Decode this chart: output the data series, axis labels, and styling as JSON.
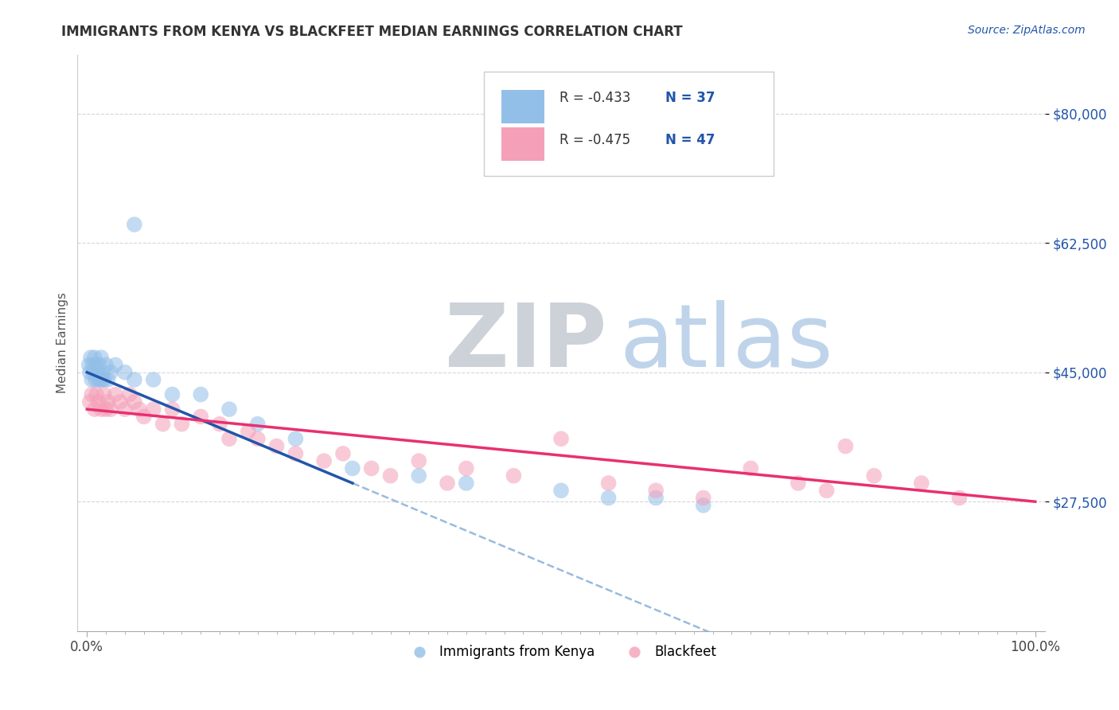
{
  "title": "IMMIGRANTS FROM KENYA VS BLACKFEET MEDIAN EARNINGS CORRELATION CHART",
  "source": "Source: ZipAtlas.com",
  "ylabel": "Median Earnings",
  "xlim": [
    -1,
    101
  ],
  "ylim": [
    10000,
    88000
  ],
  "yticks": [
    27500,
    45000,
    62500,
    80000
  ],
  "ytick_labels": [
    "$27,500",
    "$45,000",
    "$62,500",
    "$80,000"
  ],
  "xticks": [
    0,
    100
  ],
  "xtick_labels": [
    "0.0%",
    "100.0%"
  ],
  "blue_color": "#92bfe8",
  "pink_color": "#f4a0b8",
  "blue_line_color": "#2255aa",
  "pink_line_color": "#e83070",
  "dashed_line_color": "#99bbdd",
  "legend_r1": "R = -0.433",
  "legend_n1": "N = 37",
  "legend_r2": "R = -0.475",
  "legend_n2": "N = 47",
  "legend_label1": "Immigrants from Kenya",
  "legend_label2": "Blackfeet",
  "blue_x": [
    0.2,
    0.3,
    0.4,
    0.5,
    0.6,
    0.7,
    0.8,
    0.9,
    1.0,
    1.1,
    1.2,
    1.3,
    1.4,
    1.5,
    1.6,
    1.7,
    1.8,
    2.0,
    2.2,
    2.5,
    3.0,
    4.0,
    5.0,
    7.0,
    9.0,
    12.0,
    15.0,
    18.0,
    22.0,
    28.0,
    35.0,
    40.0,
    50.0,
    55.0,
    60.0,
    65.0,
    5.0
  ],
  "blue_y": [
    46000,
    45000,
    47000,
    44000,
    46000,
    45000,
    47000,
    44000,
    46000,
    45000,
    44000,
    46000,
    44000,
    47000,
    44000,
    45000,
    44000,
    46000,
    44000,
    45000,
    46000,
    45000,
    44000,
    44000,
    42000,
    42000,
    40000,
    38000,
    36000,
    32000,
    31000,
    30000,
    29000,
    28000,
    28000,
    27000,
    65000
  ],
  "pink_x": [
    0.3,
    0.5,
    0.8,
    1.0,
    1.2,
    1.5,
    1.8,
    2.0,
    2.2,
    2.5,
    3.0,
    3.5,
    4.0,
    4.5,
    5.0,
    5.5,
    6.0,
    7.0,
    8.0,
    9.0,
    10.0,
    12.0,
    14.0,
    15.0,
    17.0,
    18.0,
    20.0,
    22.0,
    25.0,
    27.0,
    30.0,
    32.0,
    35.0,
    38.0,
    40.0,
    45.0,
    50.0,
    55.0,
    60.0,
    65.0,
    70.0,
    75.0,
    78.0,
    80.0,
    83.0,
    88.0,
    92.0
  ],
  "pink_y": [
    41000,
    42000,
    40000,
    42000,
    41000,
    40000,
    42000,
    40000,
    41000,
    40000,
    42000,
    41000,
    40000,
    42000,
    41000,
    40000,
    39000,
    40000,
    38000,
    40000,
    38000,
    39000,
    38000,
    36000,
    37000,
    36000,
    35000,
    34000,
    33000,
    34000,
    32000,
    31000,
    33000,
    30000,
    32000,
    31000,
    36000,
    30000,
    29000,
    28000,
    32000,
    30000,
    29000,
    35000,
    31000,
    30000,
    28000
  ]
}
